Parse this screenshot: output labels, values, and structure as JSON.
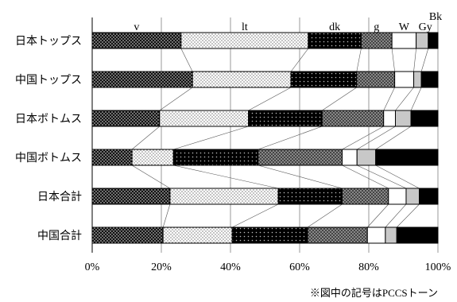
{
  "chart_data": {
    "type": "bar",
    "orientation": "horizontal",
    "stacked": true,
    "normalized": true,
    "categories": [
      "日本トップス",
      "中国トップス",
      "日本ボトムス",
      "中国ボトムス",
      "日本合計",
      "中国合計"
    ],
    "series": [
      {
        "name": "v",
        "pattern": "dense-dots",
        "values": [
          25.7,
          29.0,
          19.5,
          11.5,
          22.5,
          20.5
        ]
      },
      {
        "name": "lt",
        "pattern": "light-dots",
        "values": [
          36.8,
          28.5,
          25.7,
          12.0,
          31.3,
          20.0
        ]
      },
      {
        "name": "dk",
        "pattern": "dark-dots",
        "values": [
          15.3,
          19.0,
          21.3,
          24.5,
          18.5,
          21.8
        ]
      },
      {
        "name": "g",
        "pattern": "crosshatch",
        "values": [
          8.9,
          11.0,
          17.8,
          24.3,
          13.4,
          17.3
        ]
      },
      {
        "name": "W",
        "pattern": "white",
        "values": [
          7.0,
          5.5,
          3.4,
          4.3,
          5.1,
          5.2
        ]
      },
      {
        "name": "Gy",
        "pattern": "light-gray",
        "values": [
          3.5,
          2.2,
          4.5,
          5.4,
          3.8,
          3.3
        ]
      },
      {
        "name": "Bk",
        "pattern": "solid-black",
        "values": [
          2.8,
          4.8,
          7.8,
          18.0,
          5.4,
          11.9
        ]
      }
    ],
    "xlim": [
      0,
      100
    ],
    "x_ticks": [
      "0%",
      "20%",
      "40%",
      "60%",
      "80%",
      "100%"
    ],
    "grid": "vertical",
    "legend": "series names printed above top bar",
    "note": "※図中の記号はPCCSトーン"
  }
}
